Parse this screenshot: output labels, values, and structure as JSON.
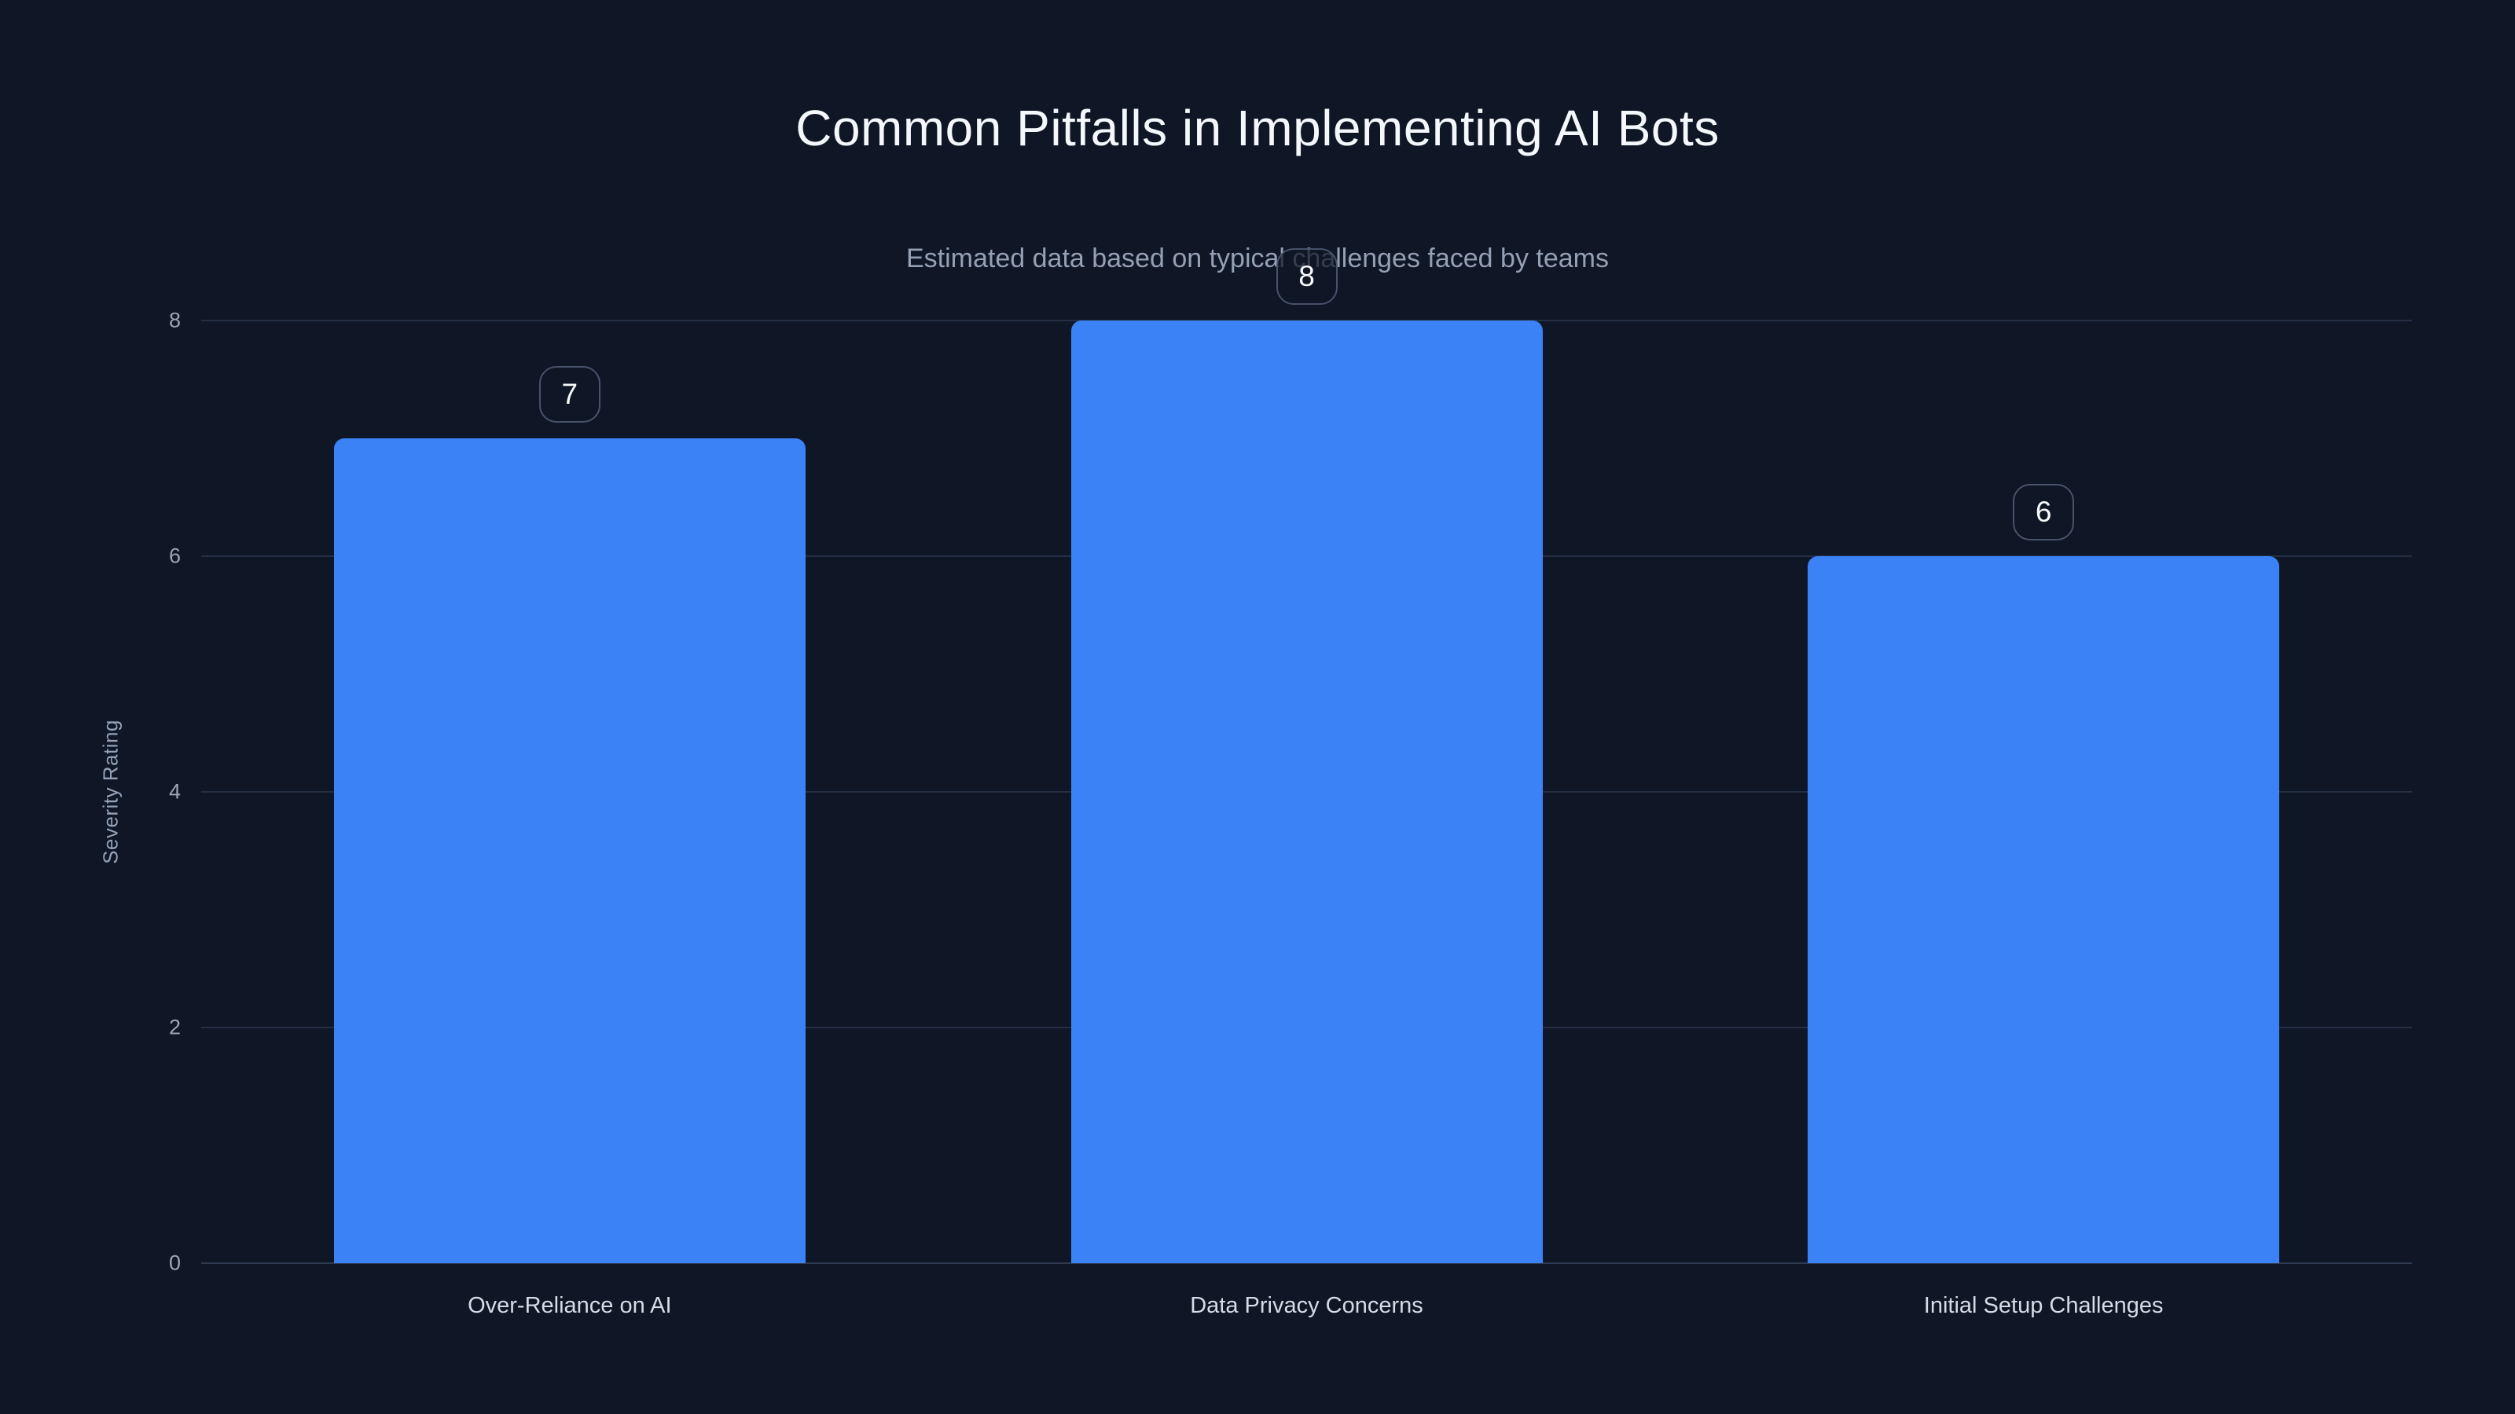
{
  "page": {
    "background_color": "#0f1626",
    "accent_color": "#3b82f6"
  },
  "chart_data": {
    "type": "bar",
    "title": "Common Pitfalls in Implementing AI Bots",
    "subtitle": "Estimated data based on typical challenges faced by teams",
    "categories": [
      "Over-Reliance on AI",
      "Data Privacy Concerns",
      "Initial Setup Challenges"
    ],
    "values": [
      7,
      8,
      6
    ],
    "value_labels": [
      "7",
      "8",
      "6"
    ],
    "xlabel": "",
    "ylabel": "Severity Rating",
    "ylim": [
      0,
      8
    ],
    "yticks": [
      0,
      2,
      4,
      6,
      8
    ],
    "grid": true,
    "legend": false,
    "bar_color": "#3b82f6",
    "gridline_color": "#232f42",
    "tick_label_color": "#9aa7b8",
    "title_color": "#f4f7fb",
    "subtitle_color": "#94a0b3"
  }
}
